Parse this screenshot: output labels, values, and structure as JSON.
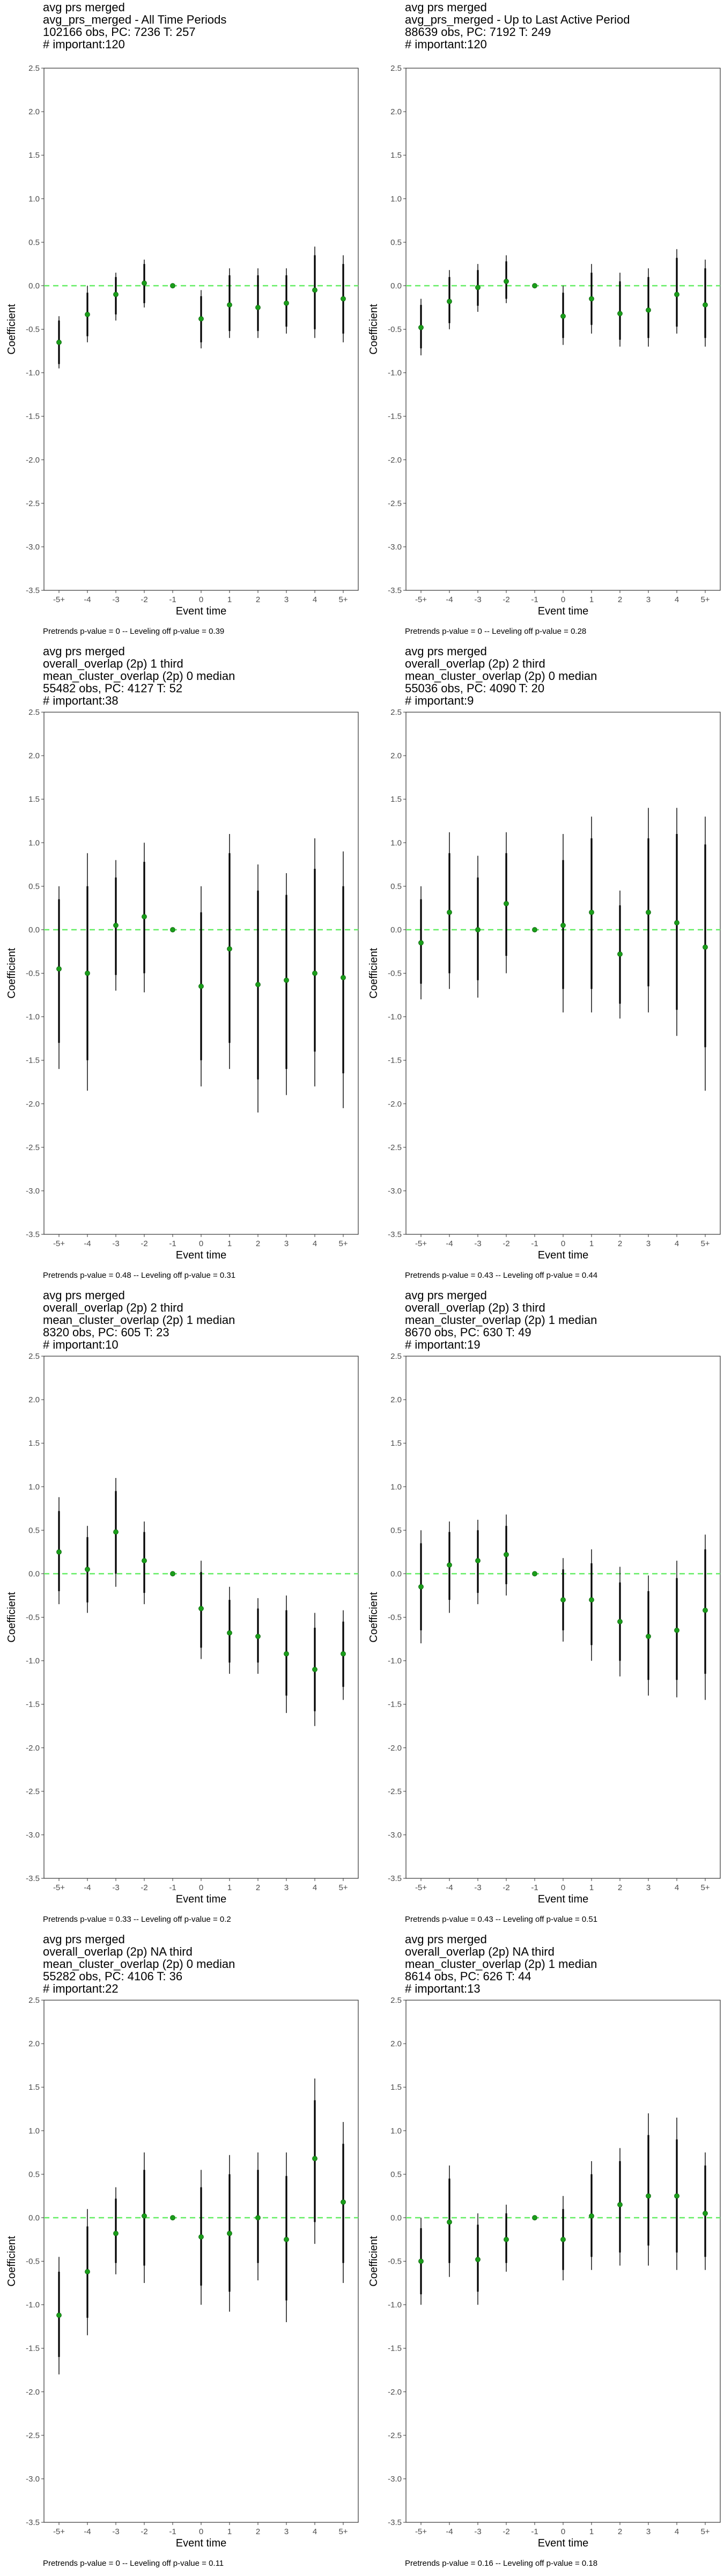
{
  "colors": {
    "point": "#1a9e1a",
    "zero_line": "#66ee66",
    "bar": "#000000",
    "axis": "#333333"
  },
  "chart_data": [
    {
      "type": "scatter",
      "title_lines": [
        "avg prs merged",
        "avg_prs_merged - All Time Periods",
        "102166 obs, PC: 7236 T: 257",
        "# important:120"
      ],
      "footer": "Pretrends p-value = 0 -- Leveling off p-value = 0.39",
      "xlabel": "Event time",
      "ylabel": "Coefficient",
      "x_ticks": [
        "-5+",
        "-4",
        "-3",
        "-2",
        "-1",
        "0",
        "1",
        "2",
        "3",
        "4",
        "5+"
      ],
      "y_ticks": [
        "-3.5",
        "-3.0",
        "-2.5",
        "-2.0",
        "-1.5",
        "-1.0",
        "-0.5",
        "0.0",
        "0.5",
        "1.0",
        "1.5",
        "2.0",
        "2.5"
      ],
      "ylim": [
        -3.5,
        2.5
      ],
      "reference_line": 0,
      "points": [
        {
          "x": "-5+",
          "y": -0.65,
          "lo": -0.95,
          "hi": -0.35,
          "ilo": -0.9,
          "ihi": -0.4
        },
        {
          "x": "-4",
          "y": -0.33,
          "lo": -0.65,
          "hi": 0.0,
          "ilo": -0.58,
          "ihi": -0.08
        },
        {
          "x": "-3",
          "y": -0.1,
          "lo": -0.4,
          "hi": 0.15,
          "ilo": -0.33,
          "ihi": 0.1
        },
        {
          "x": "-2",
          "y": 0.03,
          "lo": -0.25,
          "hi": 0.3,
          "ilo": -0.2,
          "ihi": 0.25
        },
        {
          "x": "-1",
          "y": 0.0
        },
        {
          "x": "0",
          "y": -0.38,
          "lo": -0.72,
          "hi": -0.05,
          "ilo": -0.65,
          "ihi": -0.12
        },
        {
          "x": "1",
          "y": -0.22,
          "lo": -0.6,
          "hi": 0.2,
          "ilo": -0.52,
          "ihi": 0.12
        },
        {
          "x": "2",
          "y": -0.25,
          "lo": -0.6,
          "hi": 0.2,
          "ilo": -0.52,
          "ihi": 0.12
        },
        {
          "x": "3",
          "y": -0.2,
          "lo": -0.55,
          "hi": 0.2,
          "ilo": -0.47,
          "ihi": 0.12
        },
        {
          "x": "4",
          "y": -0.05,
          "lo": -0.6,
          "hi": 0.45,
          "ilo": -0.5,
          "ihi": 0.35
        },
        {
          "x": "5+",
          "y": -0.15,
          "lo": -0.65,
          "hi": 0.35,
          "ilo": -0.55,
          "ihi": 0.25
        }
      ]
    },
    {
      "type": "scatter",
      "title_lines": [
        "avg prs merged",
        "avg_prs_merged - Up to Last Active Period",
        "88639 obs, PC: 7192 T: 249",
        "# important:120"
      ],
      "footer": "Pretrends p-value = 0 -- Leveling off p-value = 0.28",
      "xlabel": "Event time",
      "ylabel": "Coefficient",
      "x_ticks": [
        "-5+",
        "-4",
        "-3",
        "-2",
        "-1",
        "0",
        "1",
        "2",
        "3",
        "4",
        "5+"
      ],
      "y_ticks": [
        "-3.5",
        "-3.0",
        "-2.5",
        "-2.0",
        "-1.5",
        "-1.0",
        "-0.5",
        "0.0",
        "0.5",
        "1.0",
        "1.5",
        "2.0",
        "2.5"
      ],
      "ylim": [
        -3.5,
        2.5
      ],
      "reference_line": 0,
      "points": [
        {
          "x": "-5+",
          "y": -0.48,
          "lo": -0.8,
          "hi": -0.15,
          "ilo": -0.72,
          "ihi": -0.22
        },
        {
          "x": "-4",
          "y": -0.18,
          "lo": -0.5,
          "hi": 0.18,
          "ilo": -0.43,
          "ihi": 0.1
        },
        {
          "x": "-3",
          "y": -0.02,
          "lo": -0.3,
          "hi": 0.25,
          "ilo": -0.23,
          "ihi": 0.18
        },
        {
          "x": "-2",
          "y": 0.05,
          "lo": -0.2,
          "hi": 0.35,
          "ilo": -0.15,
          "ihi": 0.28
        },
        {
          "x": "-1",
          "y": 0.0
        },
        {
          "x": "0",
          "y": -0.35,
          "lo": -0.68,
          "hi": 0.0,
          "ilo": -0.6,
          "ihi": -0.08
        },
        {
          "x": "1",
          "y": -0.15,
          "lo": -0.55,
          "hi": 0.25,
          "ilo": -0.45,
          "ihi": 0.15
        },
        {
          "x": "2",
          "y": -0.32,
          "lo": -0.7,
          "hi": 0.15,
          "ilo": -0.62,
          "ihi": 0.05
        },
        {
          "x": "3",
          "y": -0.28,
          "lo": -0.7,
          "hi": 0.2,
          "ilo": -0.6,
          "ihi": 0.1
        },
        {
          "x": "4",
          "y": -0.1,
          "lo": -0.55,
          "hi": 0.42,
          "ilo": -0.47,
          "ihi": 0.32
        },
        {
          "x": "5+",
          "y": -0.22,
          "lo": -0.7,
          "hi": 0.3,
          "ilo": -0.6,
          "ihi": 0.2
        }
      ]
    },
    {
      "type": "scatter",
      "title_lines": [
        "avg prs merged",
        "overall_overlap (2p) 1 third",
        "mean_cluster_overlap (2p) 0 median",
        "55482 obs, PC: 4127 T: 52",
        "# important:38"
      ],
      "footer": "Pretrends p-value = 0.48 -- Leveling off p-value = 0.31",
      "xlabel": "Event time",
      "ylabel": "Coefficient",
      "x_ticks": [
        "-5+",
        "-4",
        "-3",
        "-2",
        "-1",
        "0",
        "1",
        "2",
        "3",
        "4",
        "5+"
      ],
      "y_ticks": [
        "-3.5",
        "-3.0",
        "-2.5",
        "-2.0",
        "-1.5",
        "-1.0",
        "-0.5",
        "0.0",
        "0.5",
        "1.0",
        "1.5",
        "2.0",
        "2.5"
      ],
      "ylim": [
        -3.5,
        2.5
      ],
      "reference_line": 0,
      "points": [
        {
          "x": "-5+",
          "y": -0.45,
          "lo": -1.6,
          "hi": 0.5,
          "ilo": -1.3,
          "ihi": 0.35
        },
        {
          "x": "-4",
          "y": -0.5,
          "lo": -1.85,
          "hi": 0.88,
          "ilo": -1.5,
          "ihi": 0.5
        },
        {
          "x": "-3",
          "y": 0.05,
          "lo": -0.7,
          "hi": 0.8,
          "ilo": -0.52,
          "ihi": 0.6
        },
        {
          "x": "-2",
          "y": 0.15,
          "lo": -0.72,
          "hi": 1.0,
          "ilo": -0.5,
          "ihi": 0.78
        },
        {
          "x": "-1",
          "y": 0.0
        },
        {
          "x": "0",
          "y": -0.65,
          "lo": -1.8,
          "hi": 0.5,
          "ilo": -1.5,
          "ihi": 0.2
        },
        {
          "x": "1",
          "y": -0.22,
          "lo": -1.6,
          "hi": 1.1,
          "ilo": -1.3,
          "ihi": 0.88
        },
        {
          "x": "2",
          "y": -0.63,
          "lo": -2.1,
          "hi": 0.75,
          "ilo": -1.72,
          "ihi": 0.45
        },
        {
          "x": "3",
          "y": -0.58,
          "lo": -1.9,
          "hi": 0.65,
          "ilo": -1.6,
          "ihi": 0.4
        },
        {
          "x": "4",
          "y": -0.5,
          "lo": -1.8,
          "hi": 1.05,
          "ilo": -1.4,
          "ihi": 0.7
        },
        {
          "x": "5+",
          "y": -0.55,
          "lo": -2.05,
          "hi": 0.9,
          "ilo": -1.65,
          "ihi": 0.5
        }
      ]
    },
    {
      "type": "scatter",
      "title_lines": [
        "avg prs merged",
        "overall_overlap (2p) 2 third",
        "mean_cluster_overlap (2p) 0 median",
        "55036 obs, PC: 4090 T: 20",
        "# important:9"
      ],
      "footer": "Pretrends p-value = 0.43 -- Leveling off p-value = 0.44",
      "xlabel": "Event time",
      "ylabel": "Coefficient",
      "x_ticks": [
        "-5+",
        "-4",
        "-3",
        "-2",
        "-1",
        "0",
        "1",
        "2",
        "3",
        "4",
        "5+"
      ],
      "y_ticks": [
        "-3.5",
        "-3.0",
        "-2.5",
        "-2.0",
        "-1.5",
        "-1.0",
        "-0.5",
        "0.0",
        "0.5",
        "1.0",
        "1.5",
        "2.0",
        "2.5"
      ],
      "ylim": [
        -3.5,
        2.5
      ],
      "reference_line": 0,
      "points": [
        {
          "x": "-5+",
          "y": -0.15,
          "lo": -0.8,
          "hi": 0.5,
          "ilo": -0.62,
          "ihi": 0.35
        },
        {
          "x": "-4",
          "y": 0.2,
          "lo": -0.68,
          "hi": 1.12,
          "ilo": -0.5,
          "ihi": 0.88
        },
        {
          "x": "-3",
          "y": 0.0,
          "lo": -0.78,
          "hi": 0.85,
          "ilo": -0.58,
          "ihi": 0.6
        },
        {
          "x": "-2",
          "y": 0.3,
          "lo": -0.5,
          "hi": 1.12,
          "ilo": -0.3,
          "ihi": 0.88
        },
        {
          "x": "-1",
          "y": 0.0
        },
        {
          "x": "0",
          "y": 0.05,
          "lo": -0.95,
          "hi": 1.1,
          "ilo": -0.68,
          "ihi": 0.8
        },
        {
          "x": "1",
          "y": 0.2,
          "lo": -0.95,
          "hi": 1.3,
          "ilo": -0.68,
          "ihi": 1.05
        },
        {
          "x": "2",
          "y": -0.28,
          "lo": -1.02,
          "hi": 0.45,
          "ilo": -0.85,
          "ihi": 0.28
        },
        {
          "x": "3",
          "y": 0.2,
          "lo": -0.95,
          "hi": 1.4,
          "ilo": -0.65,
          "ihi": 1.05
        },
        {
          "x": "4",
          "y": 0.08,
          "lo": -1.22,
          "hi": 1.4,
          "ilo": -0.92,
          "ihi": 1.1
        },
        {
          "x": "5+",
          "y": -0.2,
          "lo": -1.85,
          "hi": 1.3,
          "ilo": -1.35,
          "ihi": 0.98
        }
      ]
    },
    {
      "type": "scatter",
      "title_lines": [
        "avg prs merged",
        "overall_overlap (2p) 2 third",
        "mean_cluster_overlap (2p) 1 median",
        "8320 obs, PC: 605 T: 23",
        "# important:10"
      ],
      "footer": "Pretrends p-value = 0.33 -- Leveling off p-value = 0.2",
      "xlabel": "Event time",
      "ylabel": "Coefficient",
      "x_ticks": [
        "-5+",
        "-4",
        "-3",
        "-2",
        "-1",
        "0",
        "1",
        "2",
        "3",
        "4",
        "5+"
      ],
      "y_ticks": [
        "-3.5",
        "-3.0",
        "-2.5",
        "-2.0",
        "-1.5",
        "-1.0",
        "-0.5",
        "0.0",
        "0.5",
        "1.0",
        "1.5",
        "2.0",
        "2.5"
      ],
      "ylim": [
        -3.5,
        2.5
      ],
      "reference_line": 0,
      "points": [
        {
          "x": "-5+",
          "y": 0.25,
          "lo": -0.35,
          "hi": 0.88,
          "ilo": -0.2,
          "ihi": 0.72
        },
        {
          "x": "-4",
          "y": 0.05,
          "lo": -0.45,
          "hi": 0.55,
          "ilo": -0.33,
          "ihi": 0.42
        },
        {
          "x": "-3",
          "y": 0.48,
          "lo": -0.15,
          "hi": 1.1,
          "ilo": 0.0,
          "ihi": 0.95
        },
        {
          "x": "-2",
          "y": 0.15,
          "lo": -0.35,
          "hi": 0.6,
          "ilo": -0.22,
          "ihi": 0.48
        },
        {
          "x": "-1",
          "y": 0.0
        },
        {
          "x": "0",
          "y": -0.4,
          "lo": -0.98,
          "hi": 0.15,
          "ilo": -0.85,
          "ihi": 0.02
        },
        {
          "x": "1",
          "y": -0.68,
          "lo": -1.15,
          "hi": -0.15,
          "ilo": -1.02,
          "ihi": -0.3
        },
        {
          "x": "2",
          "y": -0.72,
          "lo": -1.15,
          "hi": -0.28,
          "ilo": -1.02,
          "ihi": -0.4
        },
        {
          "x": "3",
          "y": -0.92,
          "lo": -1.6,
          "hi": -0.25,
          "ilo": -1.4,
          "ihi": -0.42
        },
        {
          "x": "4",
          "y": -1.1,
          "lo": -1.75,
          "hi": -0.45,
          "ilo": -1.58,
          "ihi": -0.62
        },
        {
          "x": "5+",
          "y": -0.92,
          "lo": -1.45,
          "hi": -0.42,
          "ilo": -1.3,
          "ihi": -0.55
        }
      ]
    },
    {
      "type": "scatter",
      "title_lines": [
        "avg prs merged",
        "overall_overlap (2p) 3 third",
        "mean_cluster_overlap (2p) 1 median",
        "8670 obs, PC: 630 T: 49",
        "# important:19"
      ],
      "footer": "Pretrends p-value = 0.43 -- Leveling off p-value = 0.51",
      "xlabel": "Event time",
      "ylabel": "Coefficient",
      "x_ticks": [
        "-5+",
        "-4",
        "-3",
        "-2",
        "-1",
        "0",
        "1",
        "2",
        "3",
        "4",
        "5+"
      ],
      "y_ticks": [
        "-3.5",
        "-3.0",
        "-2.5",
        "-2.0",
        "-1.5",
        "-1.0",
        "-0.5",
        "0.0",
        "0.5",
        "1.0",
        "1.5",
        "2.0",
        "2.5"
      ],
      "ylim": [
        -3.5,
        2.5
      ],
      "reference_line": 0,
      "points": [
        {
          "x": "-5+",
          "y": -0.15,
          "lo": -0.8,
          "hi": 0.5,
          "ilo": -0.65,
          "ihi": 0.35
        },
        {
          "x": "-4",
          "y": 0.1,
          "lo": -0.45,
          "hi": 0.6,
          "ilo": -0.3,
          "ihi": 0.48
        },
        {
          "x": "-3",
          "y": 0.15,
          "lo": -0.35,
          "hi": 0.62,
          "ilo": -0.22,
          "ihi": 0.5
        },
        {
          "x": "-2",
          "y": 0.22,
          "lo": -0.25,
          "hi": 0.68,
          "ilo": -0.12,
          "ihi": 0.55
        },
        {
          "x": "-1",
          "y": 0.0
        },
        {
          "x": "0",
          "y": -0.3,
          "lo": -0.78,
          "hi": 0.18,
          "ilo": -0.65,
          "ihi": 0.05
        },
        {
          "x": "1",
          "y": -0.3,
          "lo": -1.0,
          "hi": 0.28,
          "ilo": -0.82,
          "ihi": 0.12
        },
        {
          "x": "2",
          "y": -0.55,
          "lo": -1.18,
          "hi": 0.08,
          "ilo": -1.0,
          "ihi": -0.1
        },
        {
          "x": "3",
          "y": -0.72,
          "lo": -1.4,
          "hi": -0.02,
          "ilo": -1.22,
          "ihi": -0.2
        },
        {
          "x": "4",
          "y": -0.65,
          "lo": -1.42,
          "hi": 0.15,
          "ilo": -1.22,
          "ihi": -0.05
        },
        {
          "x": "5+",
          "y": -0.42,
          "lo": -1.45,
          "hi": 0.45,
          "ilo": -1.15,
          "ihi": 0.28
        }
      ]
    },
    {
      "type": "scatter",
      "title_lines": [
        "avg prs merged",
        "overall_overlap (2p) NA third",
        "mean_cluster_overlap (2p) 0 median",
        "55282 obs, PC: 4106 T: 36",
        "# important:22"
      ],
      "footer": "Pretrends p-value = 0 -- Leveling off p-value = 0.11",
      "xlabel": "Event time",
      "ylabel": "Coefficient",
      "x_ticks": [
        "-5+",
        "-4",
        "-3",
        "-2",
        "-1",
        "0",
        "1",
        "2",
        "3",
        "4",
        "5+"
      ],
      "y_ticks": [
        "-3.5",
        "-3.0",
        "-2.5",
        "-2.0",
        "-1.5",
        "-1.0",
        "-0.5",
        "0.0",
        "0.5",
        "1.0",
        "1.5",
        "2.0",
        "2.5"
      ],
      "ylim": [
        -3.5,
        2.5
      ],
      "reference_line": 0,
      "points": [
        {
          "x": "-5+",
          "y": -1.12,
          "lo": -1.8,
          "hi": -0.45,
          "ilo": -1.6,
          "ihi": -0.62
        },
        {
          "x": "-4",
          "y": -0.62,
          "lo": -1.35,
          "hi": 0.1,
          "ilo": -1.15,
          "ihi": -0.1
        },
        {
          "x": "-3",
          "y": -0.18,
          "lo": -0.65,
          "hi": 0.35,
          "ilo": -0.52,
          "ihi": 0.22
        },
        {
          "x": "-2",
          "y": 0.02,
          "lo": -0.75,
          "hi": 0.75,
          "ilo": -0.55,
          "ihi": 0.55
        },
        {
          "x": "-1",
          "y": 0.0
        },
        {
          "x": "0",
          "y": -0.22,
          "lo": -1.0,
          "hi": 0.55,
          "ilo": -0.78,
          "ihi": 0.35
        },
        {
          "x": "1",
          "y": -0.18,
          "lo": -1.08,
          "hi": 0.72,
          "ilo": -0.85,
          "ihi": 0.5
        },
        {
          "x": "2",
          "y": 0.0,
          "lo": -0.72,
          "hi": 0.75,
          "ilo": -0.52,
          "ihi": 0.55
        },
        {
          "x": "3",
          "y": -0.25,
          "lo": -1.2,
          "hi": 0.75,
          "ilo": -0.95,
          "ihi": 0.48
        },
        {
          "x": "4",
          "y": 0.68,
          "lo": -0.3,
          "hi": 1.6,
          "ilo": -0.05,
          "ihi": 1.35
        },
        {
          "x": "5+",
          "y": 0.18,
          "lo": -0.75,
          "hi": 1.1,
          "ilo": -0.52,
          "ihi": 0.85
        }
      ]
    },
    {
      "type": "scatter",
      "title_lines": [
        "avg prs merged",
        "overall_overlap (2p) NA third",
        "mean_cluster_overlap (2p) 1 median",
        "8614 obs, PC: 626 T: 44",
        "# important:13"
      ],
      "footer": "Pretrends p-value = 0.16 -- Leveling off p-value = 0.18",
      "xlabel": "Event time",
      "ylabel": "Coefficient",
      "x_ticks": [
        "-5+",
        "-4",
        "-3",
        "-2",
        "-1",
        "0",
        "1",
        "2",
        "3",
        "4",
        "5+"
      ],
      "y_ticks": [
        "-3.5",
        "-3.0",
        "-2.5",
        "-2.0",
        "-1.5",
        "-1.0",
        "-0.5",
        "0.0",
        "0.5",
        "1.0",
        "1.5",
        "2.0",
        "2.5"
      ],
      "ylim": [
        -3.5,
        2.5
      ],
      "reference_line": 0,
      "points": [
        {
          "x": "-5+",
          "y": -0.5,
          "lo": -1.0,
          "hi": 0.0,
          "ilo": -0.88,
          "ihi": -0.12
        },
        {
          "x": "-4",
          "y": -0.05,
          "lo": -0.68,
          "hi": 0.6,
          "ilo": -0.52,
          "ihi": 0.45
        },
        {
          "x": "-3",
          "y": -0.48,
          "lo": -1.0,
          "hi": 0.05,
          "ilo": -0.85,
          "ihi": -0.08
        },
        {
          "x": "-2",
          "y": -0.25,
          "lo": -0.62,
          "hi": 0.15,
          "ilo": -0.52,
          "ihi": 0.05
        },
        {
          "x": "-1",
          "y": 0.0
        },
        {
          "x": "0",
          "y": -0.25,
          "lo": -0.72,
          "hi": 0.25,
          "ilo": -0.6,
          "ihi": 0.1
        },
        {
          "x": "1",
          "y": 0.02,
          "lo": -0.6,
          "hi": 0.65,
          "ilo": -0.45,
          "ihi": 0.5
        },
        {
          "x": "2",
          "y": 0.15,
          "lo": -0.55,
          "hi": 0.8,
          "ilo": -0.4,
          "ihi": 0.65
        },
        {
          "x": "3",
          "y": 0.25,
          "lo": -0.55,
          "hi": 1.2,
          "ilo": -0.32,
          "ihi": 0.95
        },
        {
          "x": "4",
          "y": 0.25,
          "lo": -0.6,
          "hi": 1.15,
          "ilo": -0.4,
          "ihi": 0.9
        },
        {
          "x": "5+",
          "y": 0.05,
          "lo": -0.6,
          "hi": 0.75,
          "ilo": -0.45,
          "ihi": 0.6
        }
      ]
    }
  ]
}
